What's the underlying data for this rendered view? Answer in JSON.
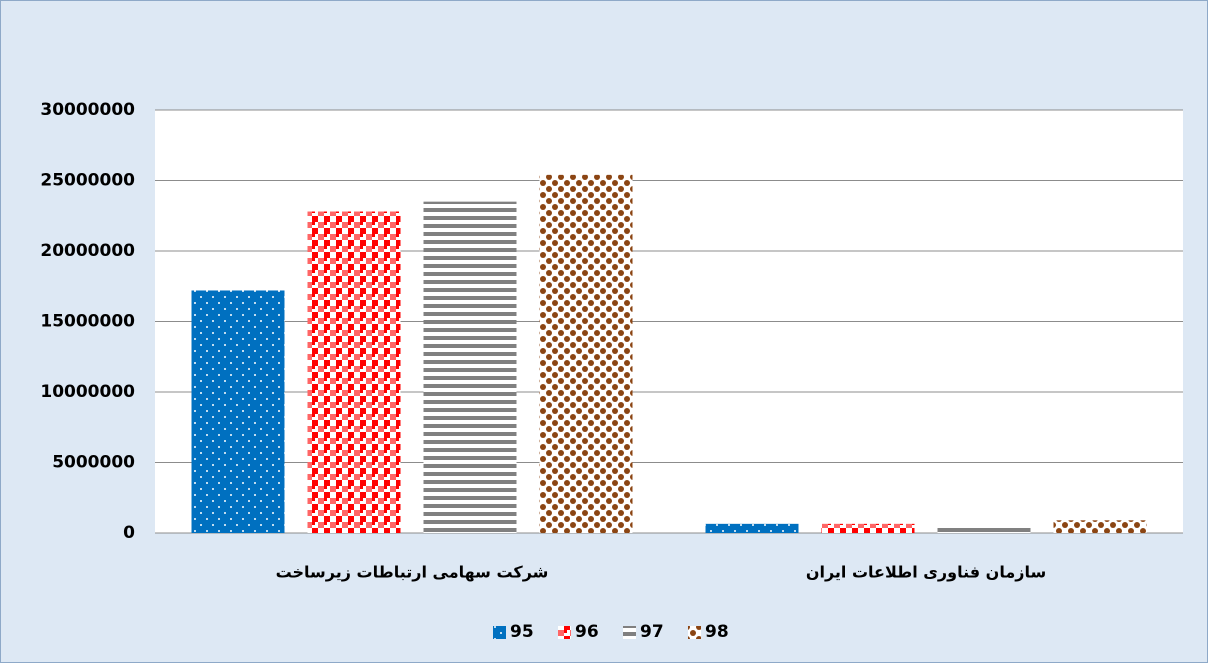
{
  "chart_data": {
    "type": "bar",
    "categories": [
      "شرکت سهامی ارتباطات زیرساخت",
      "سازمان فناوری اطلاعات ایران"
    ],
    "series": [
      {
        "name": "95",
        "color": "#0070c0",
        "pattern": "dots",
        "values": [
          17200000,
          650000
        ]
      },
      {
        "name": "96",
        "color": "#ff0000",
        "pattern": "checker",
        "values": [
          22800000,
          650000
        ]
      },
      {
        "name": "97",
        "color": "#808080",
        "pattern": "hstripes",
        "values": [
          23500000,
          600000
        ]
      },
      {
        "name": "98",
        "color": "#8b4513",
        "pattern": "weave",
        "values": [
          25400000,
          900000
        ]
      }
    ],
    "ylim": [
      0,
      30000000
    ],
    "yticks": [
      0,
      5000000,
      10000000,
      15000000,
      20000000,
      25000000,
      30000000
    ],
    "grid": true,
    "legend": "bottom"
  }
}
